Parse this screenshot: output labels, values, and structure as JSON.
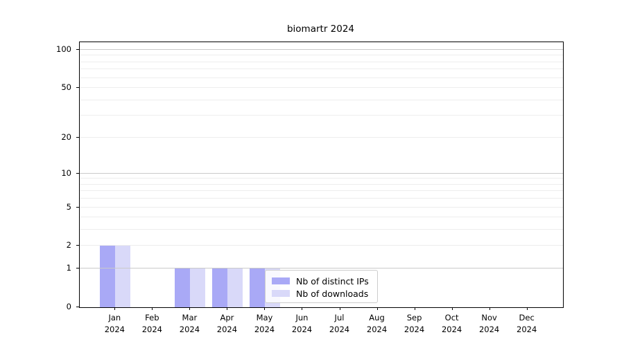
{
  "chart_data": {
    "type": "bar",
    "title": "biomartr 2024",
    "categories": [
      "Jan 2024",
      "Feb 2024",
      "Mar 2024",
      "Apr 2024",
      "May 2024",
      "Jun 2024",
      "Jul 2024",
      "Aug 2024",
      "Sep 2024",
      "Oct 2024",
      "Nov 2024",
      "Dec 2024"
    ],
    "series": [
      {
        "name": "Nb of distinct IPs",
        "color": "#a9a9f6",
        "values": [
          2,
          0,
          1,
          1,
          1,
          0,
          0,
          0,
          0,
          0,
          0,
          0
        ]
      },
      {
        "name": "Nb of downloads",
        "color": "#d9d9f9",
        "values": [
          2,
          0,
          1,
          1,
          1,
          0,
          0,
          0,
          0,
          0,
          0,
          0
        ]
      }
    ],
    "y_axis": {
      "scale": "log1p",
      "tick_values": [
        100,
        50,
        20,
        10,
        5,
        2,
        1,
        0
      ],
      "tick_labels": [
        "100",
        "50",
        "20",
        "10",
        "5",
        "2",
        "1",
        "0"
      ],
      "major_gridlines": [
        1,
        10,
        100
      ],
      "minor_gridlines": [
        2,
        3,
        4,
        5,
        6,
        7,
        8,
        9,
        20,
        30,
        40,
        50,
        60,
        70,
        80,
        90
      ],
      "ylim": [
        0,
        115
      ]
    },
    "x_axis": {
      "year_line": "2024",
      "month_labels": [
        "Jan",
        "Feb",
        "Mar",
        "Apr",
        "May",
        "Jun",
        "Jul",
        "Aug",
        "Sep",
        "Oct",
        "Nov",
        "Dec"
      ]
    },
    "legend_position": "lower center",
    "grid": "horizontal"
  },
  "colors": {
    "major_grid": "#c9c9c9",
    "minor_grid": "#ededed",
    "spine": "#000000",
    "legend_border": "#cccccc"
  }
}
